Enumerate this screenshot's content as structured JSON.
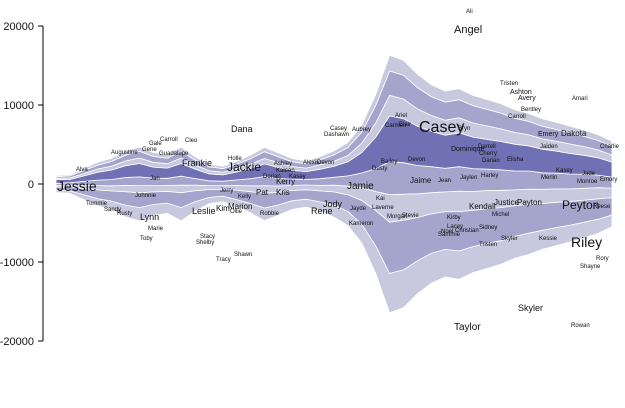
{
  "chart_data": {
    "type": "area",
    "title": "",
    "xlabel": "",
    "ylabel": "",
    "ylim": [
      -20000,
      20000
    ],
    "yticks": [
      {
        "value": 20000,
        "label": "20000"
      },
      {
        "value": 10000,
        "label": "10000"
      },
      {
        "value": 0,
        "label": "0"
      },
      {
        "value": -10000,
        "label": "-10000"
      },
      {
        "value": -20000,
        "label": "-20000"
      }
    ],
    "x": [
      0,
      1,
      2,
      3,
      4,
      5,
      6,
      7,
      8,
      9,
      10,
      11,
      12,
      13,
      14,
      15,
      16,
      17,
      18,
      19,
      20,
      21,
      22,
      23,
      24,
      25,
      26,
      27,
      28,
      29,
      30,
      31,
      32,
      33,
      34,
      35,
      36,
      37,
      38,
      39,
      40
    ],
    "colors": {
      "light": "#c8c8de",
      "mid": "#a4a4cc",
      "dark": "#7070b4",
      "white": "#ffffff"
    },
    "series_color_cycle": [
      "light",
      "mid",
      "light",
      "mid",
      "dark",
      "light",
      "mid",
      "light"
    ],
    "series": [
      {
        "values": [
          300,
          300,
          600,
          900,
          1100,
          1500,
          1700,
          1400,
          1300,
          1700,
          1200,
          800,
          700,
          900,
          1200,
          1600,
          1300,
          1100,
          1000,
          1200,
          1500,
          1800,
          2400,
          3500,
          5000,
          4800,
          4200,
          3800,
          3500,
          3600,
          3300,
          3200,
          3000,
          2800,
          2700,
          2400,
          2300,
          2100,
          2000,
          1800,
          1500
        ]
      },
      {
        "values": [
          400,
          500,
          800,
          1100,
          1300,
          1700,
          1900,
          1600,
          1500,
          1900,
          1400,
          1000,
          900,
          1200,
          1500,
          1900,
          1600,
          1300,
          1200,
          1400,
          1700,
          2100,
          3000,
          4500,
          6500,
          6300,
          5500,
          5000,
          4800,
          5000,
          4600,
          4400,
          4200,
          3900,
          3700,
          3400,
          3200,
          3000,
          2800,
          2600,
          2200
        ]
      },
      {
        "values": [
          200,
          250,
          400,
          550,
          650,
          800,
          900,
          800,
          750,
          950,
          700,
          500,
          450,
          600,
          750,
          950,
          800,
          650,
          600,
          700,
          850,
          1100,
          1600,
          2400,
          3500,
          3300,
          3000,
          2700,
          2500,
          2600,
          2400,
          2300,
          2200,
          2000,
          1900,
          1800,
          1700,
          1600,
          1500,
          1400,
          1200
        ]
      },
      {
        "values": [
          250,
          300,
          500,
          700,
          800,
          1000,
          1100,
          950,
          900,
          1150,
          850,
          600,
          550,
          700,
          900,
          1150,
          950,
          800,
          700,
          850,
          1000,
          1300,
          1900,
          2900,
          4200,
          4000,
          3600,
          3300,
          3000,
          3100,
          2900,
          2700,
          2600,
          2400,
          2300,
          2100,
          2000,
          1900,
          1800,
          1600,
          1400
        ]
      },
      {
        "values": [
          500,
          400,
          700,
          1000,
          1200,
          1500,
          1700,
          1400,
          1300,
          1600,
          1200,
          900,
          800,
          1000,
          1300,
          1600,
          1400,
          1100,
          1000,
          1200,
          1400,
          1800,
          2600,
          4000,
          5800,
          5600,
          5000,
          4500,
          4200,
          4300,
          4000,
          3800,
          3600,
          3400,
          3200,
          3000,
          2800,
          2600,
          2400,
          2200,
          1900
        ]
      },
      {
        "values": [
          150,
          200,
          300,
          400,
          500,
          600,
          700,
          600,
          550,
          700,
          500,
          400,
          350,
          450,
          550,
          700,
          600,
          500,
          450,
          550,
          650,
          800,
          1200,
          1800,
          2600,
          2500,
          2200,
          2000,
          1900,
          1900,
          1800,
          1700,
          1600,
          1500,
          1400,
          1300,
          1250,
          1200,
          1100,
          1000,
          900
        ]
      },
      {
        "values": [
          200,
          250,
          400,
          500,
          600,
          750,
          850,
          750,
          700,
          850,
          650,
          500,
          450,
          550,
          700,
          850,
          750,
          600,
          550,
          650,
          800,
          1000,
          1400,
          2200,
          3100,
          3000,
          2700,
          2400,
          2300,
          2300,
          2200,
          2100,
          2000,
          1800,
          1700,
          1600,
          1500,
          1400,
          1300,
          1200,
          1100
        ]
      },
      {
        "values": [
          150,
          150,
          250,
          350,
          400,
          500,
          550,
          500,
          450,
          550,
          400,
          300,
          300,
          350,
          450,
          550,
          500,
          400,
          350,
          400,
          500,
          650,
          900,
          1400,
          2000,
          1900,
          1700,
          1500,
          1400,
          1400,
          1300,
          1250,
          1200,
          1100,
          1000,
          950,
          900,
          850,
          800,
          750,
          650
        ]
      }
    ],
    "labels": [
      {
        "text": "Ali",
        "size": 6
      },
      {
        "text": "Angel",
        "size": 11
      },
      {
        "text": "Tristen",
        "size": 6
      },
      {
        "text": "Ashton",
        "size": 7
      },
      {
        "text": "Avery",
        "size": 7
      },
      {
        "text": "Amari",
        "size": 6
      },
      {
        "text": "Bentley",
        "size": 6
      },
      {
        "text": "Carroll",
        "size": 6
      },
      {
        "text": "Emery",
        "size": 7
      },
      {
        "text": "Dakota",
        "size": 8
      },
      {
        "text": "Casey",
        "size": 16
      },
      {
        "text": "Ariel",
        "size": 6
      },
      {
        "text": "Carmen",
        "size": 6
      },
      {
        "text": "Blair",
        "size": 6
      },
      {
        "text": "Bryn",
        "size": 6
      },
      {
        "text": "Jaiden",
        "size": 6
      },
      {
        "text": "Charlie",
        "size": 6
      },
      {
        "text": "Dominique",
        "size": 7
      },
      {
        "text": "Darrell",
        "size": 6
      },
      {
        "text": "Cherry",
        "size": 6
      },
      {
        "text": "Darian",
        "size": 6
      },
      {
        "text": "Elisha",
        "size": 6
      },
      {
        "text": "Devon",
        "size": 6
      },
      {
        "text": "Bailey",
        "size": 6
      },
      {
        "text": "Dusty",
        "size": 6
      },
      {
        "text": "Jaime",
        "size": 8
      },
      {
        "text": "Jean",
        "size": 6
      },
      {
        "text": "Jaylen",
        "size": 6
      },
      {
        "text": "Harley",
        "size": 6
      },
      {
        "text": "Kasey",
        "size": 6
      },
      {
        "text": "Merlin",
        "size": 6
      },
      {
        "text": "Jade",
        "size": 6
      },
      {
        "text": "Monroe",
        "size": 6
      },
      {
        "text": "Emory",
        "size": 6
      },
      {
        "text": "Kendall",
        "size": 8
      },
      {
        "text": "Justice",
        "size": 8
      },
      {
        "text": "Payton",
        "size": 8
      },
      {
        "text": "Peyton",
        "size": 12
      },
      {
        "text": "Reese",
        "size": 6
      },
      {
        "text": "Michel",
        "size": 6
      },
      {
        "text": "Kirby",
        "size": 6
      },
      {
        "text": "Lacey",
        "size": 6
      },
      {
        "text": "Sidney",
        "size": 6
      },
      {
        "text": "Noel",
        "size": 6
      },
      {
        "text": "Christian",
        "size": 6
      },
      {
        "text": "Sammie",
        "size": 6
      },
      {
        "text": "Tristen",
        "size": 6
      },
      {
        "text": "Skyler",
        "size": 6
      },
      {
        "text": "Kessie",
        "size": 6
      },
      {
        "text": "Riley",
        "size": 14
      },
      {
        "text": "Rory",
        "size": 6
      },
      {
        "text": "Shayne",
        "size": 6
      },
      {
        "text": "Skyler",
        "size": 9
      },
      {
        "text": "Rowan",
        "size": 6
      },
      {
        "text": "Taylor",
        "size": 10
      },
      {
        "text": "Kai",
        "size": 6
      },
      {
        "text": "Laverne",
        "size": 6
      },
      {
        "text": "Morgan",
        "size": 6
      },
      {
        "text": "Stevie",
        "size": 6
      },
      {
        "text": "Kameron",
        "size": 6
      },
      {
        "text": "Jamie",
        "size": 10
      },
      {
        "text": "Jody",
        "size": 9
      },
      {
        "text": "Jackie",
        "size": 12
      },
      {
        "text": "Rene",
        "size": 9
      },
      {
        "text": "Kerry",
        "size": 8
      },
      {
        "text": "Kris",
        "size": 8
      },
      {
        "text": "Pat",
        "size": 8
      },
      {
        "text": "Kelly",
        "size": 6
      },
      {
        "text": "Robbie",
        "size": 6
      },
      {
        "text": "Dorian",
        "size": 6
      },
      {
        "text": "Kasey",
        "size": 6
      },
      {
        "text": "Ashley",
        "size": 6
      },
      {
        "text": "Kaleen",
        "size": 6
      },
      {
        "text": "Alexis",
        "size": 6
      },
      {
        "text": "Devon",
        "size": 6
      },
      {
        "text": "Casey",
        "size": 6
      },
      {
        "text": "Dashawn",
        "size": 6
      },
      {
        "text": "Aubrey",
        "size": 6
      },
      {
        "text": "Jayde",
        "size": 6
      },
      {
        "text": "Dana",
        "size": 9
      },
      {
        "text": "Holle",
        "size": 6
      },
      {
        "text": "Frankie",
        "size": 9
      },
      {
        "text": "Cleo",
        "size": 6
      },
      {
        "text": "Carroll",
        "size": 6
      },
      {
        "text": "Guadalupe",
        "size": 6
      },
      {
        "text": "Gale",
        "size": 6
      },
      {
        "text": "Gene",
        "size": 6
      },
      {
        "text": "Augustine",
        "size": 6
      },
      {
        "text": "Jan",
        "size": 6
      },
      {
        "text": "Johnnie",
        "size": 6
      },
      {
        "text": "Jessie",
        "size": 14
      },
      {
        "text": "Alva",
        "size": 6
      },
      {
        "text": "Tommie",
        "size": 6
      },
      {
        "text": "Sandy",
        "size": 6
      },
      {
        "text": "Rusty",
        "size": 6
      },
      {
        "text": "Lynn",
        "size": 9
      },
      {
        "text": "Marie",
        "size": 6
      },
      {
        "text": "Toby",
        "size": 6
      },
      {
        "text": "Leslie",
        "size": 9
      },
      {
        "text": "Kim",
        "size": 8
      },
      {
        "text": "Marion",
        "size": 8
      },
      {
        "text": "Ollie",
        "size": 6
      },
      {
        "text": "Jerry",
        "size": 6
      },
      {
        "text": "Stacy",
        "size": 6
      },
      {
        "text": "Shelby",
        "size": 6
      },
      {
        "text": "Tracy",
        "size": 6
      },
      {
        "text": "Shawn",
        "size": 6
      }
    ]
  }
}
